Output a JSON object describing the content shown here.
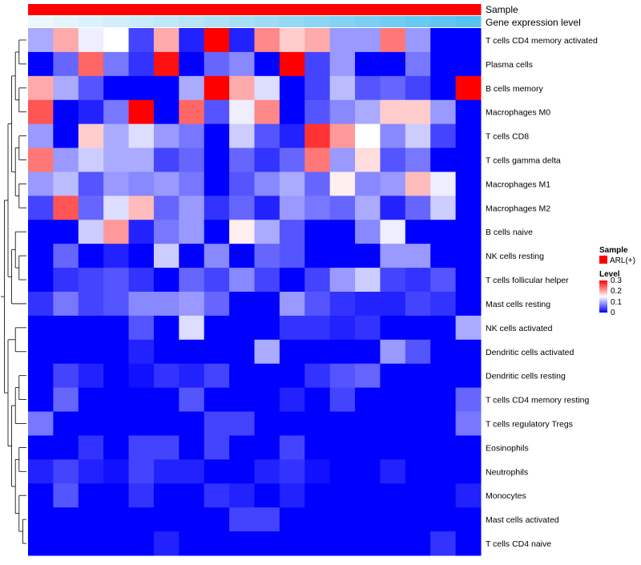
{
  "chart_data": {
    "type": "heatmap",
    "title": "",
    "annotations": [
      {
        "name": "Sample",
        "color": "#FF0000"
      },
      {
        "name": "Gene expression level",
        "color_low": "#EEF7FC",
        "color_high": "#56C3F0"
      }
    ],
    "rows": [
      "T cells CD4 memory activated",
      "Plasma cells",
      "B cells memory",
      "Macrophages M0",
      "T cells CD8",
      "T cells gamma delta",
      "Macrophages M1",
      "Macrophages M2",
      "B cells naive",
      "NK cells resting",
      "T cells follicular helper",
      "Mast cells resting",
      "NK cells activated",
      "Dendritic cells activated",
      "Dendritic cells resting",
      "T cells CD4 memory resting",
      "T cells regulatory  Tregs",
      "Eosinophils",
      "Neutrophils",
      "Monocytes",
      "Mast cells activated",
      "T cells CD4 naive"
    ],
    "n_samples": 18,
    "values": [
      [
        0.1,
        0.2,
        0.14,
        0.15,
        0.04,
        0.2,
        0.02,
        0.3,
        0.02,
        0.22,
        0.18,
        0.2,
        0.09,
        0.09,
        0.23,
        0.09,
        0.0,
        0.0
      ],
      [
        0.0,
        0.06,
        0.24,
        0.07,
        0.03,
        0.29,
        0.0,
        0.06,
        0.08,
        0.0,
        0.3,
        0.04,
        0.09,
        0.0,
        0.0,
        0.07,
        0.0,
        0.0
      ],
      [
        0.2,
        0.1,
        0.05,
        0.0,
        0.0,
        0.0,
        0.1,
        0.3,
        0.2,
        0.13,
        0.0,
        0.04,
        0.11,
        0.05,
        0.06,
        0.04,
        0.0,
        0.3
      ],
      [
        0.25,
        0.0,
        0.02,
        0.07,
        0.3,
        0.0,
        0.24,
        0.05,
        0.14,
        0.22,
        0.0,
        0.05,
        0.08,
        0.1,
        0.18,
        0.18,
        0.09,
        0.0
      ],
      [
        0.09,
        0.0,
        0.18,
        0.1,
        0.13,
        0.09,
        0.07,
        0.0,
        0.12,
        0.05,
        0.02,
        0.27,
        0.21,
        0.15,
        0.08,
        0.12,
        0.04,
        0.0
      ],
      [
        0.23,
        0.09,
        0.12,
        0.1,
        0.1,
        0.04,
        0.06,
        0.0,
        0.06,
        0.03,
        0.06,
        0.23,
        0.09,
        0.17,
        0.05,
        0.07,
        0.0,
        0.0
      ],
      [
        0.09,
        0.11,
        0.05,
        0.09,
        0.08,
        0.09,
        0.07,
        0.0,
        0.05,
        0.08,
        0.1,
        0.06,
        0.16,
        0.08,
        0.09,
        0.19,
        0.14,
        0.0
      ],
      [
        0.04,
        0.25,
        0.06,
        0.13,
        0.19,
        0.06,
        0.09,
        0.03,
        0.06,
        0.02,
        0.09,
        0.07,
        0.06,
        0.1,
        0.02,
        0.06,
        0.12,
        0.0
      ],
      [
        0.0,
        0.0,
        0.12,
        0.21,
        0.02,
        0.07,
        0.09,
        0.0,
        0.16,
        0.1,
        0.05,
        0.0,
        0.0,
        0.08,
        0.14,
        0.0,
        0.0,
        0.0
      ],
      [
        0.0,
        0.06,
        0.0,
        0.02,
        0.0,
        0.12,
        0.0,
        0.08,
        0.0,
        0.06,
        0.05,
        0.0,
        0.0,
        0.0,
        0.09,
        0.09,
        0.0,
        0.0
      ],
      [
        0.0,
        0.03,
        0.04,
        0.05,
        0.03,
        0.0,
        0.06,
        0.04,
        0.08,
        0.04,
        0.0,
        0.04,
        0.09,
        0.12,
        0.04,
        0.03,
        0.05,
        0.0
      ],
      [
        0.03,
        0.07,
        0.04,
        0.05,
        0.08,
        0.08,
        0.09,
        0.06,
        0.0,
        0.0,
        0.09,
        0.05,
        0.03,
        0.02,
        0.02,
        0.04,
        0.03,
        0.0
      ],
      [
        0.0,
        0.0,
        0.0,
        0.0,
        0.05,
        0.0,
        0.13,
        0.0,
        0.0,
        0.0,
        0.03,
        0.03,
        0.02,
        0.03,
        0.0,
        0.0,
        0.0,
        0.1
      ],
      [
        0.0,
        0.0,
        0.0,
        0.0,
        0.02,
        0.0,
        0.0,
        0.0,
        0.0,
        0.1,
        0.0,
        0.0,
        0.0,
        0.0,
        0.09,
        0.05,
        0.0,
        0.0
      ],
      [
        0.0,
        0.04,
        0.02,
        0.0,
        0.01,
        0.03,
        0.02,
        0.04,
        0.0,
        0.0,
        0.0,
        0.03,
        0.05,
        0.06,
        0.0,
        0.0,
        0.0,
        0.0
      ],
      [
        0.0,
        0.06,
        0.0,
        0.0,
        0.0,
        0.0,
        0.05,
        0.0,
        0.0,
        0.0,
        0.02,
        0.0,
        0.04,
        0.0,
        0.0,
        0.0,
        0.0,
        0.06
      ],
      [
        0.07,
        0.0,
        0.0,
        0.0,
        0.0,
        0.0,
        0.0,
        0.04,
        0.04,
        0.0,
        0.0,
        0.0,
        0.0,
        0.0,
        0.0,
        0.0,
        0.0,
        0.07
      ],
      [
        0.0,
        0.0,
        0.03,
        0.0,
        0.04,
        0.04,
        0.0,
        0.04,
        0.0,
        0.0,
        0.04,
        0.0,
        0.0,
        0.0,
        0.0,
        0.0,
        0.0,
        0.0
      ],
      [
        0.02,
        0.04,
        0.02,
        0.01,
        0.04,
        0.02,
        0.02,
        0.0,
        0.0,
        0.02,
        0.03,
        0.01,
        0.0,
        0.0,
        0.02,
        0.0,
        0.0,
        0.0
      ],
      [
        0.0,
        0.05,
        0.0,
        0.0,
        0.03,
        0.0,
        0.0,
        0.03,
        0.02,
        0.0,
        0.02,
        0.0,
        0.0,
        0.0,
        0.0,
        0.0,
        0.0,
        0.02
      ],
      [
        0.0,
        0.0,
        0.0,
        0.0,
        0.0,
        0.0,
        0.0,
        0.0,
        0.04,
        0.04,
        0.0,
        0.0,
        0.0,
        0.0,
        0.0,
        0.0,
        0.0,
        0.0
      ],
      [
        0.0,
        0.0,
        0.0,
        0.0,
        0.0,
        0.02,
        0.0,
        0.0,
        0.0,
        0.0,
        0.0,
        0.0,
        0.0,
        0.0,
        0.0,
        0.0,
        0.03,
        0.0
      ]
    ],
    "color_scale": {
      "low": "#0000FF",
      "mid": "#FFFFFF",
      "high": "#FF0000",
      "min": 0,
      "mid_value": 0.15,
      "max": 0.3
    },
    "legend": {
      "sample": {
        "title": "Sample",
        "entries": [
          {
            "label": "ARL(+)",
            "color": "#FF0000"
          }
        ]
      },
      "level": {
        "title": "Level",
        "ticks": [
          "0.3",
          "0.2",
          "0.1",
          "0"
        ]
      }
    },
    "dendrogram": "rows"
  }
}
